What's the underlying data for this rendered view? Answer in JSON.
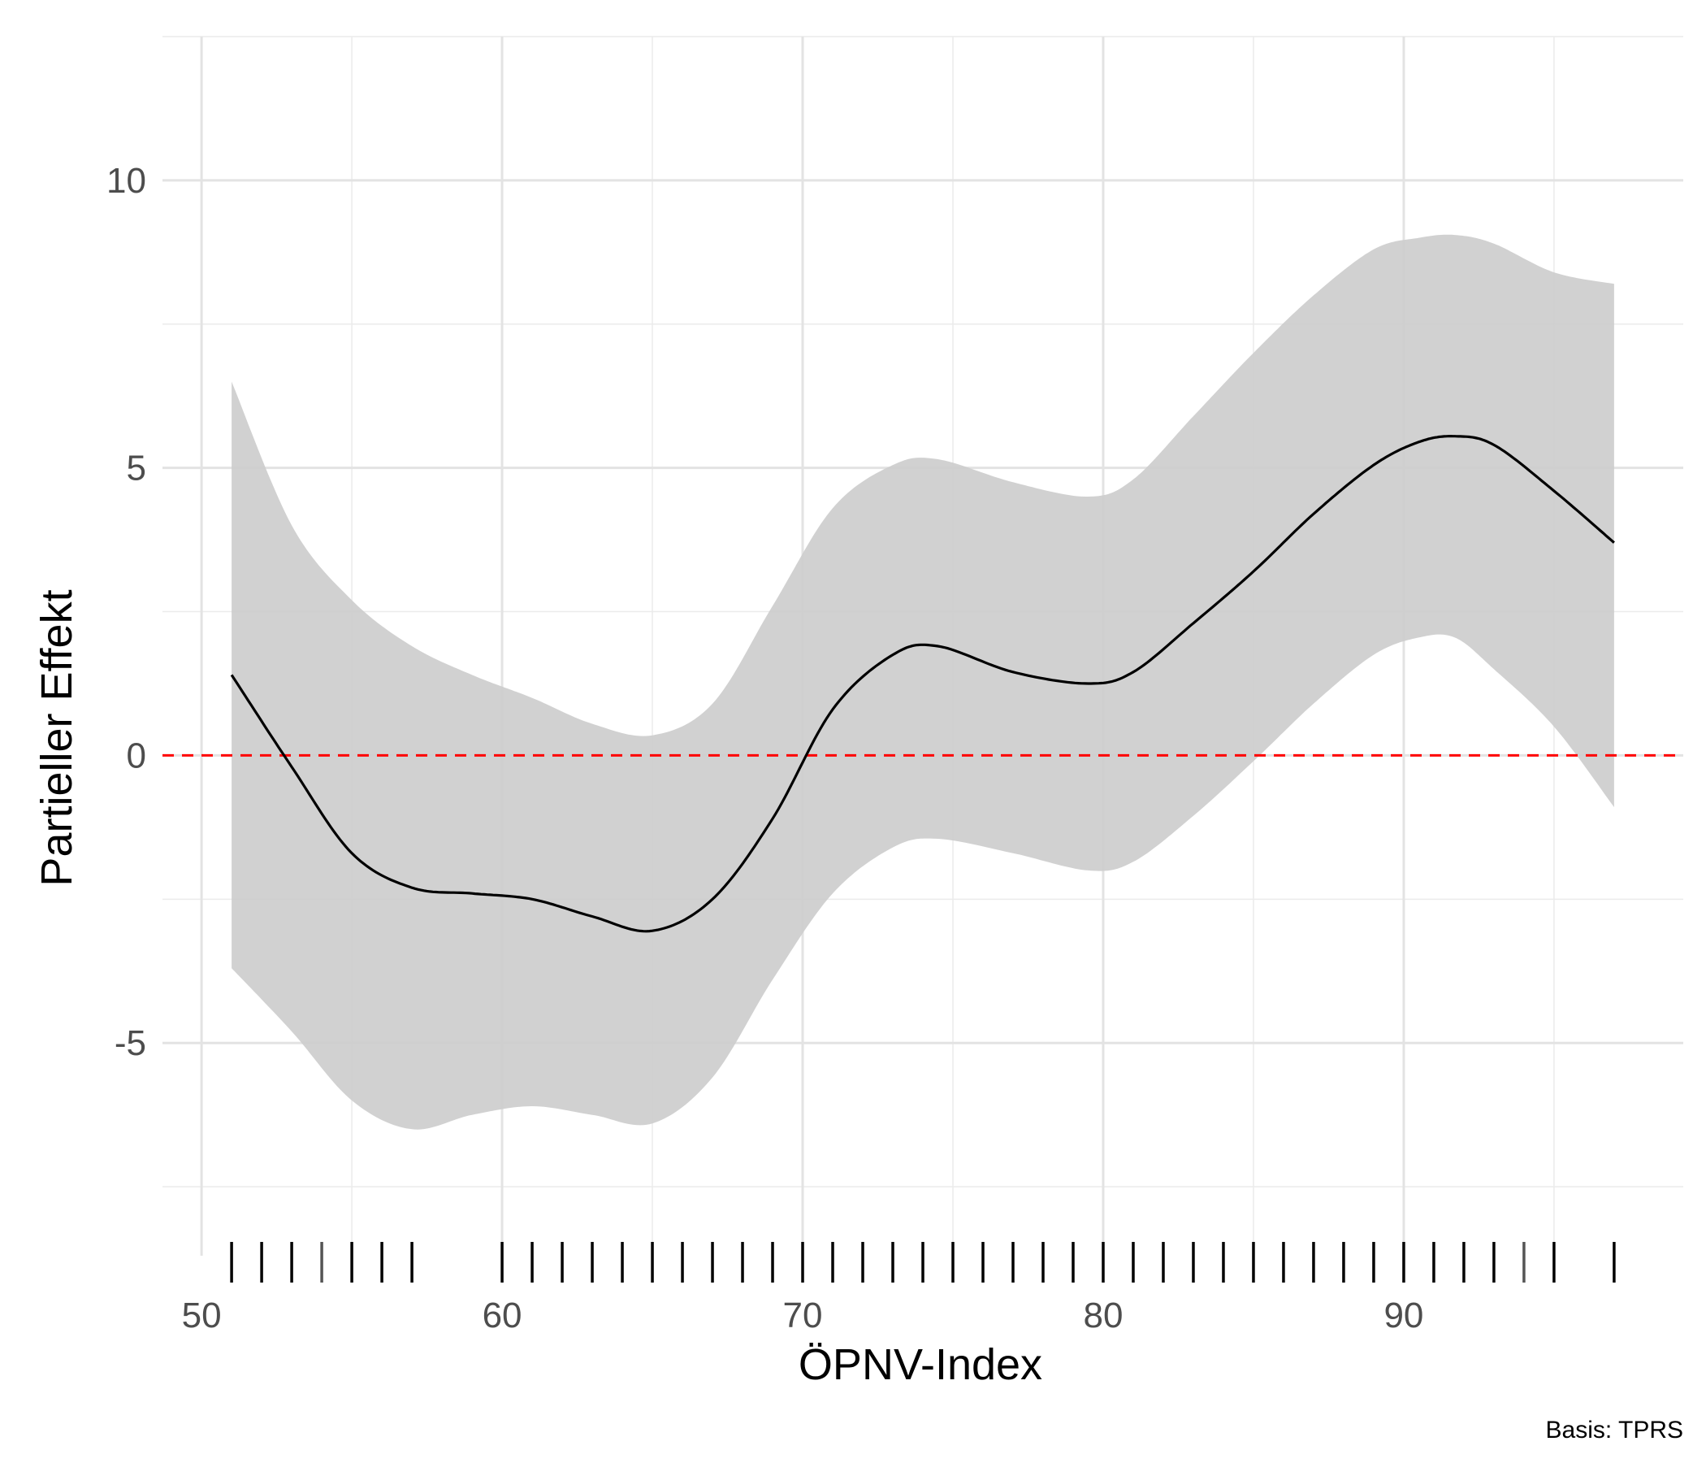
{
  "chart_data": {
    "type": "line",
    "title": "",
    "xlabel": "ÖPNV-Index",
    "ylabel": "Partieller Effekt",
    "caption": "Basis: TPRS",
    "xlim": [
      48.7,
      99.3
    ],
    "ylim": [
      -8.7,
      12.5
    ],
    "x_ticks": [
      50,
      60,
      70,
      80,
      90
    ],
    "y_ticks": [
      -5,
      0,
      5,
      10
    ],
    "x_tick_labels": [
      "50",
      "60",
      "70",
      "80",
      "90"
    ],
    "y_tick_labels": [
      "-5",
      "0",
      "5",
      "10"
    ],
    "x_minor_ticks": [
      55,
      65,
      75,
      85,
      95
    ],
    "y_minor_ticks": [
      -7.5,
      -2.5,
      2.5,
      7.5,
      12.5
    ],
    "grid": true,
    "reference_line": {
      "y": 0,
      "color": "#ff0000",
      "style": "dashed"
    },
    "series": [
      {
        "values_x": [
          51,
          53,
          55,
          57,
          59,
          61,
          63,
          65,
          67,
          69,
          71,
          73,
          74.5,
          77,
          79.5,
          81,
          83,
          85,
          87,
          89,
          90.5,
          91.7,
          93,
          95,
          97
        ],
        "fit": [
          1.4,
          -0.2,
          -1.7,
          -2.3,
          -2.4,
          -2.5,
          -2.8,
          -3.05,
          -2.5,
          -1.1,
          0.8,
          1.75,
          1.9,
          1.45,
          1.25,
          1.45,
          2.3,
          3.2,
          4.2,
          5.05,
          5.45,
          5.55,
          5.4,
          4.6,
          3.7
        ],
        "upper": [
          6.5,
          4.0,
          2.7,
          1.9,
          1.4,
          1.0,
          0.55,
          0.35,
          0.9,
          2.6,
          4.3,
          5.05,
          5.15,
          4.75,
          4.5,
          4.8,
          5.9,
          7.0,
          8.0,
          8.8,
          9.0,
          9.05,
          8.9,
          8.4,
          8.2
        ],
        "lower": [
          -3.7,
          -4.8,
          -6.0,
          -6.5,
          -6.25,
          -6.1,
          -6.25,
          -6.4,
          -5.6,
          -3.9,
          -2.4,
          -1.6,
          -1.45,
          -1.7,
          -2.0,
          -1.85,
          -1.05,
          -0.1,
          0.9,
          1.75,
          2.05,
          2.05,
          1.5,
          0.5,
          -0.9
        ],
        "color": "#000000",
        "band_color": "#cccccc"
      }
    ],
    "rug_x": [
      51,
      52,
      53,
      54,
      55,
      56,
      57,
      60,
      61,
      62,
      63,
      64,
      65,
      66,
      67,
      68,
      69,
      70,
      71,
      72,
      73,
      74,
      75,
      76,
      77,
      78,
      79,
      80,
      81,
      82,
      83,
      84,
      85,
      86,
      87,
      88,
      89,
      90,
      91,
      92,
      93,
      94,
      95,
      97
    ],
    "rug_light_x": [
      54,
      94
    ]
  }
}
